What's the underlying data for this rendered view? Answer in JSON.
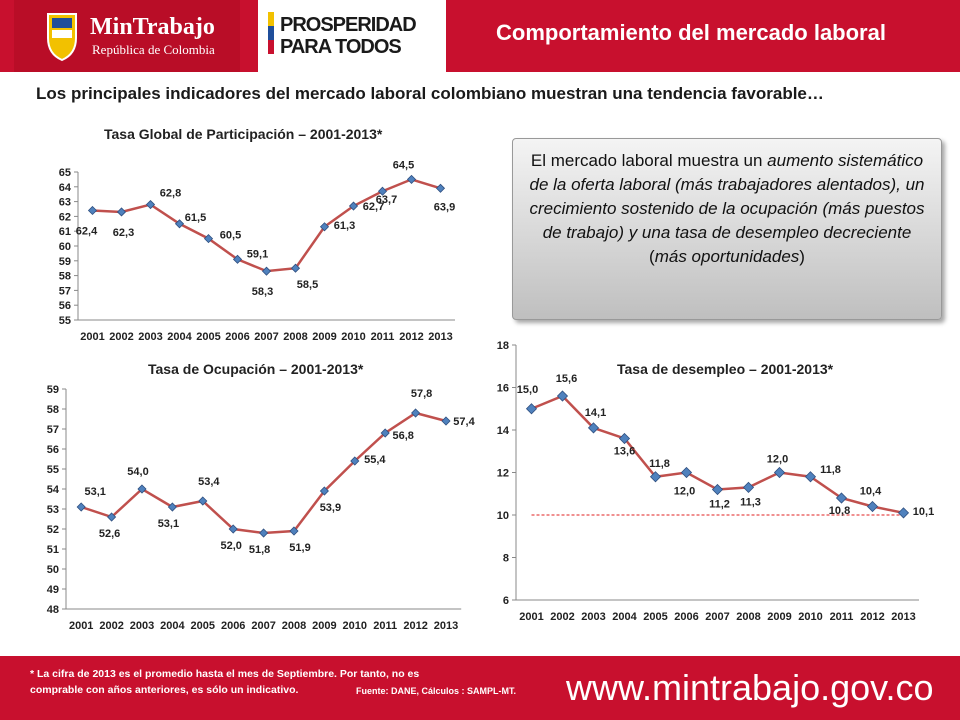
{
  "header": {
    "brand_name": "MinTrabajo",
    "brand_sub": "República de Colombia",
    "prosperidad_line1": "PROSPERIDAD",
    "prosperidad_line2": "PARA TODOS",
    "slide_title": "Comportamiento del mercado laboral"
  },
  "subtitle": "Los principales indicadores del mercado laboral colombiano muestran una tendencia favorable…",
  "callout": {
    "part1": "El mercado laboral muestra un ",
    "part2": "aumento sistemático de la oferta laboral (más trabajadores alentados), un crecimiento sostenido de la ocupación (más puestos de trabajo) y una tasa de desempleo decreciente",
    "part3": " (",
    "part4": "más oportunidades",
    "part5": ")"
  },
  "footer": {
    "note_line1": "* La cifra de 2013 es el  promedio hasta el mes de Septiembre. Por tanto, no es",
    "note_line2": "comprable con años anteriores, es sólo un indicativo.",
    "source": "Fuente: DANE, Cálculos : SAMPL-MT.",
    "website": "www.mintrabajo.gov.co"
  },
  "colors": {
    "brand_red": "#c8102e",
    "line_red": "#c0504d",
    "marker_blue": "#4f81bd"
  },
  "chart_data": [
    {
      "type": "line",
      "title": "Tasa Global de Participación – 2001-2013*",
      "categories": [
        "2001",
        "2002",
        "2003",
        "2004",
        "2005",
        "2006",
        "2007",
        "2008",
        "2009",
        "2010",
        "2011",
        "2012",
        "2013"
      ],
      "values": [
        62.4,
        62.3,
        62.8,
        61.5,
        60.5,
        59.1,
        58.3,
        58.5,
        61.3,
        62.7,
        63.7,
        64.5,
        63.9
      ],
      "labels": [
        "62,4",
        "62,3",
        "62,8",
        "61,5",
        "60,5",
        "59,1",
        "58,3",
        "58,5",
        "61,3",
        "62,7",
        "63,7",
        "64,5",
        "63,9"
      ],
      "ylim": [
        55,
        65
      ],
      "yticks": [
        55,
        56,
        57,
        58,
        59,
        60,
        61,
        62,
        63,
        64,
        65
      ]
    },
    {
      "type": "line",
      "title": "Tasa de Ocupación – 2001-2013*",
      "categories": [
        "2001",
        "2002",
        "2003",
        "2004",
        "2005",
        "2006",
        "2007",
        "2008",
        "2009",
        "2010",
        "2011",
        "2012",
        "2013"
      ],
      "values": [
        53.1,
        52.6,
        54.0,
        53.1,
        53.4,
        52.0,
        51.8,
        51.9,
        53.9,
        55.4,
        56.8,
        57.8,
        57.4
      ],
      "labels": [
        "53,1",
        "52,6",
        "54,0",
        "53,1",
        "53,4",
        "52,0",
        "51,8",
        "51,9",
        "53,9",
        "55,4",
        "56,8",
        "57,8",
        "57,4"
      ],
      "ylim": [
        48,
        59
      ],
      "yticks": [
        48,
        49,
        50,
        51,
        52,
        53,
        54,
        55,
        56,
        57,
        58,
        59
      ]
    },
    {
      "type": "line",
      "title": "Tasa de desempleo – 2001-2013*",
      "categories": [
        "2001",
        "2002",
        "2003",
        "2004",
        "2005",
        "2006",
        "2007",
        "2008",
        "2009",
        "2010",
        "2011",
        "2012",
        "2013"
      ],
      "values": [
        15.0,
        15.6,
        14.1,
        13.6,
        11.8,
        12.0,
        11.2,
        11.3,
        12.0,
        11.8,
        10.8,
        10.4,
        10.1
      ],
      "labels": [
        "15,0",
        "15,6",
        "14,1",
        "13,6",
        "11,8",
        "12,0",
        "11,2",
        "11,3",
        "12,0",
        "11,8",
        "10,8",
        "10,4",
        "10,1"
      ],
      "ylim": [
        6,
        18
      ],
      "yticks": [
        6,
        8,
        10,
        12,
        14,
        16,
        18
      ],
      "reference_line": 10
    }
  ]
}
